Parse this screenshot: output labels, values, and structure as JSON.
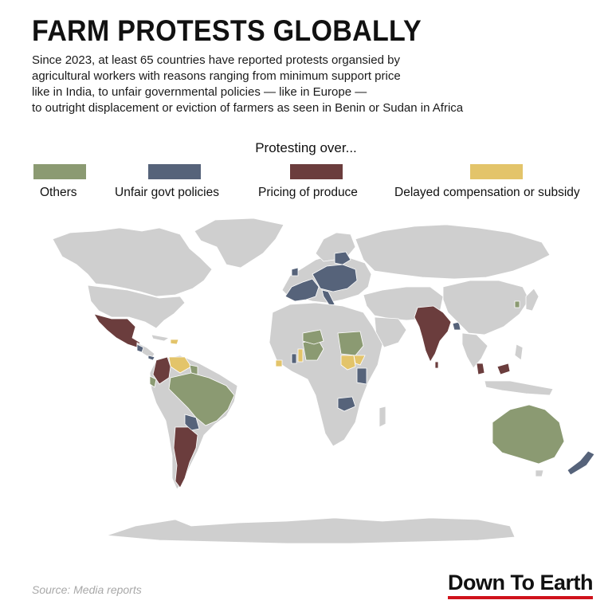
{
  "title": "FARM PROTESTS GLOBALLY",
  "subtitle_lines": [
    "Since 2023, at least 65 countries have reported protests organsied by",
    "agricultural workers with reasons ranging from minimum support price",
    "like in India, to unfair governmental policies — like in Europe —",
    "to outright displacement or eviction of farmers as seen in Benin or Sudan in Africa"
  ],
  "legend": {
    "title": "Protesting over...",
    "items": [
      {
        "label": "Others",
        "color": "#8b9a72"
      },
      {
        "label": "Unfair govt policies",
        "color": "#56637a"
      },
      {
        "label": "Pricing of produce",
        "color": "#6b3d3d"
      },
      {
        "label": "Delayed compensation or subsidy",
        "color": "#e3c46a"
      }
    ]
  },
  "colors": {
    "land_default": "#cfcfcf",
    "others": "#8b9a72",
    "policies": "#56637a",
    "pricing": "#6b3d3d",
    "compensation": "#e3c46a"
  },
  "source": "Source: Media reports",
  "brand": "Down To Earth"
}
